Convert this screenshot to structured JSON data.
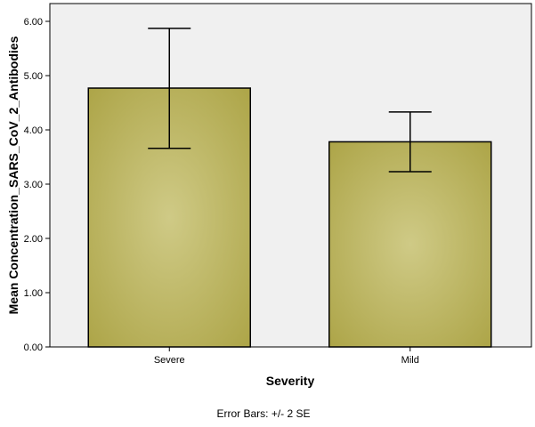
{
  "chart_data": {
    "type": "bar",
    "categories": [
      "Severe",
      "Mild"
    ],
    "values": [
      4.77,
      3.78
    ],
    "error_bars": {
      "type": "+/- 2 SE",
      "lower": [
        3.66,
        3.23
      ],
      "upper": [
        5.87,
        4.33
      ]
    },
    "xlabel": "Severity",
    "ylabel": "Mean Concentration_SARS_CoV_2_Antibodies",
    "ylim": [
      0,
      6.2
    ],
    "yticks": [
      0,
      1,
      2,
      3,
      4,
      5,
      6
    ],
    "ytick_labels": [
      "0.00",
      "1.00",
      "2.00",
      "3.00",
      "4.00",
      "5.00",
      "6.00"
    ],
    "grid": false,
    "legend": "none",
    "footnote": "Error Bars: +/- 2 SE",
    "colors": {
      "plot_background": "#f0f0f0",
      "bar_center": "#cfca86",
      "bar_edge": "#ada548",
      "bar_outline": "#000000"
    }
  }
}
